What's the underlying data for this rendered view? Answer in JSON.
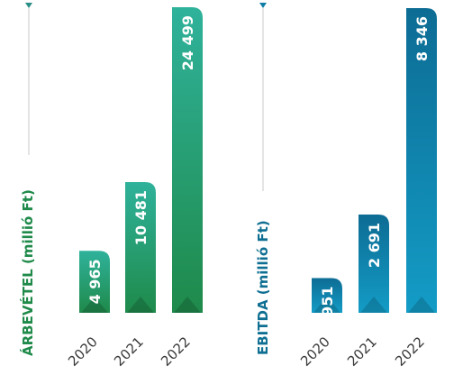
{
  "chart_data": [
    {
      "type": "bar",
      "ylabel": "ÁRBEVÉTEL (millió Ft)",
      "categories": [
        "2020",
        "2021",
        "2022"
      ],
      "values": [
        4965,
        10481,
        24499
      ],
      "value_labels": [
        "4 965",
        "10 481",
        "24 499"
      ],
      "ylim": [
        0,
        24499
      ],
      "grid": false,
      "legend": "none",
      "colors": {
        "bar_top": "#2fb29b",
        "bar_bottom": "#1f8a4a",
        "title": "#1f8a4a",
        "marker": "#2a8f86"
      }
    },
    {
      "type": "bar",
      "ylabel": "EBITDA (millió Ft)",
      "categories": [
        "2020",
        "2021",
        "2022"
      ],
      "values": [
        951,
        2691,
        8346
      ],
      "value_labels": [
        "951",
        "2 691",
        "8 346"
      ],
      "ylim": [
        0,
        8346
      ],
      "grid": false,
      "legend": "none",
      "colors": {
        "bar_top": "#0d6c94",
        "bar_bottom": "#139cc6",
        "title": "#0f6f92",
        "marker": "#0f7da4"
      }
    }
  ]
}
